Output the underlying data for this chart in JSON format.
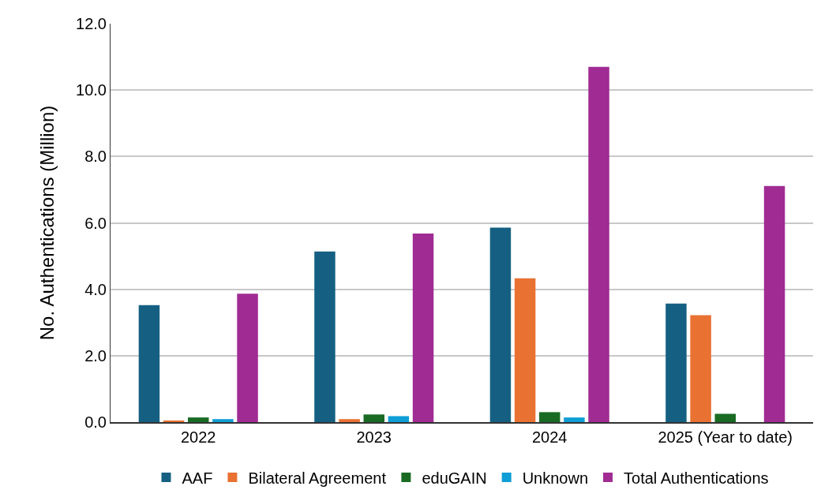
{
  "chart_data": {
    "type": "bar",
    "ylabel": "No. Authentications (Million)",
    "categories": [
      "2022",
      "2023",
      "2024",
      "2025 (Year to date)"
    ],
    "series": [
      {
        "name": "AAF",
        "color": "#156082",
        "values": [
          3.52,
          5.14,
          5.86,
          3.57
        ]
      },
      {
        "name": "Bilateral Agreement",
        "color": "#e97132",
        "values": [
          0.05,
          0.09,
          4.33,
          3.22
        ]
      },
      {
        "name": "eduGAIN",
        "color": "#196b24",
        "values": [
          0.14,
          0.23,
          0.3,
          0.25
        ]
      },
      {
        "name": "Unknown",
        "color": "#0f9ed5",
        "values": [
          0.09,
          0.18,
          0.14,
          null
        ]
      },
      {
        "name": "Total Authentications",
        "color": "#a02b93",
        "values": [
          3.87,
          5.68,
          10.7,
          7.11
        ]
      }
    ],
    "ylim": [
      0,
      12
    ],
    "yticks": [
      {
        "value": 0,
        "label": "0.0"
      },
      {
        "value": 2,
        "label": "2.0"
      },
      {
        "value": 4,
        "label": "4.0"
      },
      {
        "value": 6,
        "label": "6.0"
      },
      {
        "value": 8,
        "label": "8.0"
      },
      {
        "value": 10,
        "label": "10.0"
      },
      {
        "value": 12,
        "label": "12.0"
      }
    ],
    "grid": "y",
    "legend": "bottom"
  }
}
